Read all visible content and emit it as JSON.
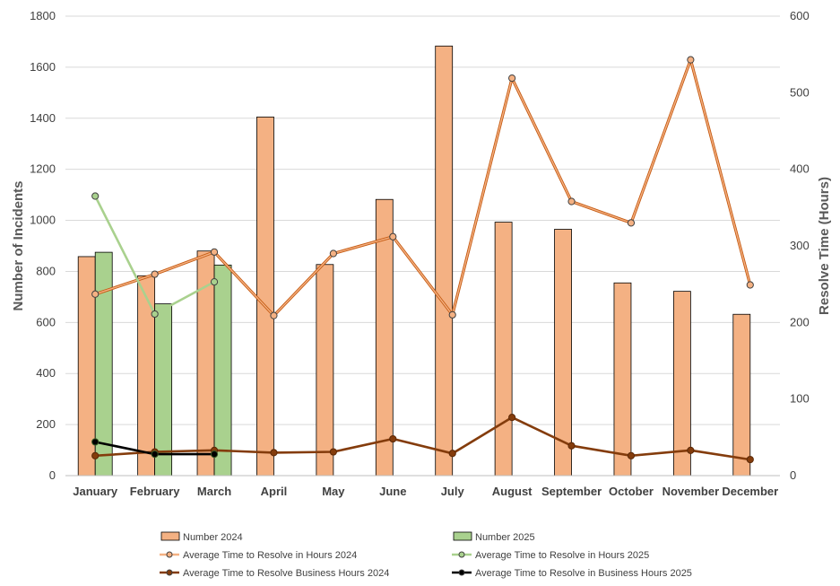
{
  "chart_data": {
    "type": "bar",
    "categories": [
      "January",
      "February",
      "March",
      "April",
      "May",
      "June",
      "July",
      "August",
      "September",
      "October",
      "November",
      "December"
    ],
    "left_axis": {
      "label": "Number of Incidents",
      "range": [
        0,
        1800
      ],
      "ticks": [
        "0",
        "200",
        "400",
        "600",
        "800",
        "1000",
        "1200",
        "1400",
        "1600",
        "1800"
      ]
    },
    "right_axis": {
      "label": "Resolve Time (Hours)",
      "range": [
        0,
        600
      ],
      "ticks": [
        "0",
        "100",
        "200",
        "300",
        "400",
        "500",
        "600"
      ]
    },
    "grid": true,
    "legend_position": "bottom",
    "bar_series": [
      {
        "name": "Number 2024",
        "color": "#f4b183",
        "values": [
          858,
          783,
          880,
          1405,
          827,
          1082,
          1683,
          993,
          965,
          755,
          722,
          632
        ]
      },
      {
        "name": "Number 2025",
        "color": "#a9d18e",
        "values": [
          875,
          673,
          825,
          null,
          null,
          null,
          null,
          null,
          null,
          null,
          null,
          null
        ]
      }
    ],
    "line_series": [
      {
        "name": "Average Time to Resolve in Hours 2024",
        "color": "#f4b183",
        "values": [
          237,
          263,
          292,
          209,
          290,
          312,
          210,
          519,
          358,
          330,
          543,
          249
        ]
      },
      {
        "name": "Average Time to Resolve in Hours 2025",
        "color": "#a9d18e",
        "values": [
          365,
          211,
          253,
          null,
          null,
          null,
          null,
          null,
          null,
          null,
          null,
          null
        ]
      },
      {
        "name": "Average Time to Resolve Business Hours 2024",
        "color": "#843c0c",
        "values": [
          26,
          31,
          33,
          30,
          31,
          48,
          29,
          76,
          39,
          26,
          33,
          21
        ]
      },
      {
        "name": "Average Time to Resolve in Business Hours 2025",
        "color": "#000000",
        "values": [
          44,
          28,
          28,
          null,
          null,
          null,
          null,
          null,
          null,
          null,
          null,
          null
        ]
      }
    ]
  }
}
